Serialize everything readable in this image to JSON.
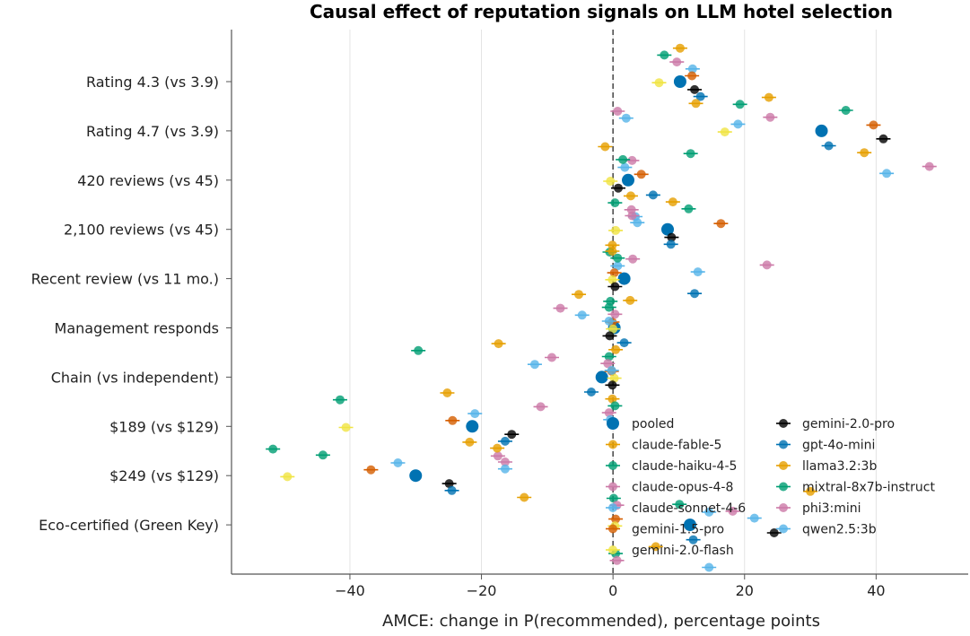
{
  "chart_data": {
    "type": "scatter",
    "title": "Causal effect of reputation signals on LLM hotel selection",
    "xlabel": "AMCE: change in P(recommended), percentage points",
    "ylabel": "",
    "xlim": [
      -58,
      54
    ],
    "xticks": [
      -40,
      -20,
      0,
      20,
      40
    ],
    "xtick_labels": [
      "−40",
      "−20",
      "0",
      "20",
      "40"
    ],
    "grid": "vertical",
    "reference_line": 0,
    "legend_position": "lower-center",
    "categories": [
      "Rating 4.3 (vs 3.9)",
      "Rating 4.7 (vs 3.9)",
      "420 reviews (vs 45)",
      "2,100 reviews (vs 45)",
      "Recent review (vs 11 mo.)",
      "Management responds",
      "Chain (vs independent)",
      "$189 (vs $129)",
      "$249 (vs $129)",
      "Eco-certified (Green Key)"
    ],
    "series": [
      {
        "name": "pooled",
        "color": "#0072b2",
        "pooled": true,
        "values": [
          10.2,
          31.7,
          2.3,
          8.3,
          1.7,
          0.2,
          -1.7,
          -21.4,
          -30.0,
          11.7
        ]
      },
      {
        "name": "claude-fable-5",
        "color": "#e69f00",
        "values": [
          10.2,
          23.7,
          -1.2,
          2.7,
          -0.1,
          -5.2,
          -17.4,
          -25.2,
          -21.8,
          30.0
        ]
      },
      {
        "name": "claude-haiku-4-5",
        "color": "#009e73",
        "values": [
          7.8,
          19.3,
          11.8,
          0.3,
          -0.5,
          -0.4,
          -29.6,
          -41.5,
          -51.7,
          0.1
        ]
      },
      {
        "name": "claude-opus-4-8",
        "color": "#cc79a7",
        "values": [
          9.7,
          0.7,
          2.9,
          2.8,
          3.0,
          -8.0,
          -9.3,
          -11.0,
          -17.5,
          0.6
        ]
      },
      {
        "name": "claude-sonnet-4-6",
        "color": "#56b4e9",
        "values": [
          12.1,
          2.0,
          1.8,
          3.4,
          0.7,
          -4.7,
          -11.9,
          -21.0,
          -32.7,
          14.6
        ]
      },
      {
        "name": "gemini-1.5-pro",
        "color": "#d55e00",
        "values": [
          12.0,
          39.6,
          4.3,
          16.4,
          0.2,
          -0.1,
          -0.2,
          -24.4,
          -36.8,
          0.4
        ]
      },
      {
        "name": "gemini-2.0-flash",
        "color": "#f0e442",
        "values": [
          7.0,
          17.0,
          -0.4,
          0.4,
          -0.1,
          0.0,
          0.2,
          -40.6,
          -49.5,
          0.3
        ]
      },
      {
        "name": "gemini-2.0-pro",
        "color": "#000000",
        "values": [
          12.4,
          41.1,
          0.8,
          8.9,
          0.3,
          -0.5,
          -0.1,
          -15.4,
          -24.9,
          24.5
        ]
      },
      {
        "name": "gpt-4o-mini",
        "color": "#0072b2",
        "values": [
          13.3,
          32.8,
          6.1,
          8.8,
          12.4,
          1.7,
          -3.3,
          -16.4,
          -24.5,
          12.2
        ]
      },
      {
        "name": "llama3.2:3b",
        "color": "#e69f00",
        "values": [
          12.6,
          38.2,
          9.1,
          -0.1,
          2.6,
          0.4,
          -0.1,
          -17.6,
          -13.5,
          6.5
        ]
      },
      {
        "name": "mixtral-8x7b-instruct",
        "color": "#009e73",
        "values": [
          35.4,
          1.5,
          11.5,
          0.7,
          -0.6,
          -0.6,
          0.3,
          -44.1,
          10.1,
          0.4
        ]
      },
      {
        "name": "phi3:mini",
        "color": "#cc79a7",
        "values": [
          23.9,
          48.1,
          2.9,
          23.4,
          0.3,
          -0.8,
          -0.6,
          -16.4,
          18.2,
          0.6
        ]
      },
      {
        "name": "qwen2.5:3b",
        "color": "#56b4e9",
        "values": [
          19.0,
          41.6,
          3.7,
          12.9,
          -0.6,
          -0.2,
          -0.4,
          -16.4,
          21.5,
          14.6
        ]
      }
    ]
  }
}
